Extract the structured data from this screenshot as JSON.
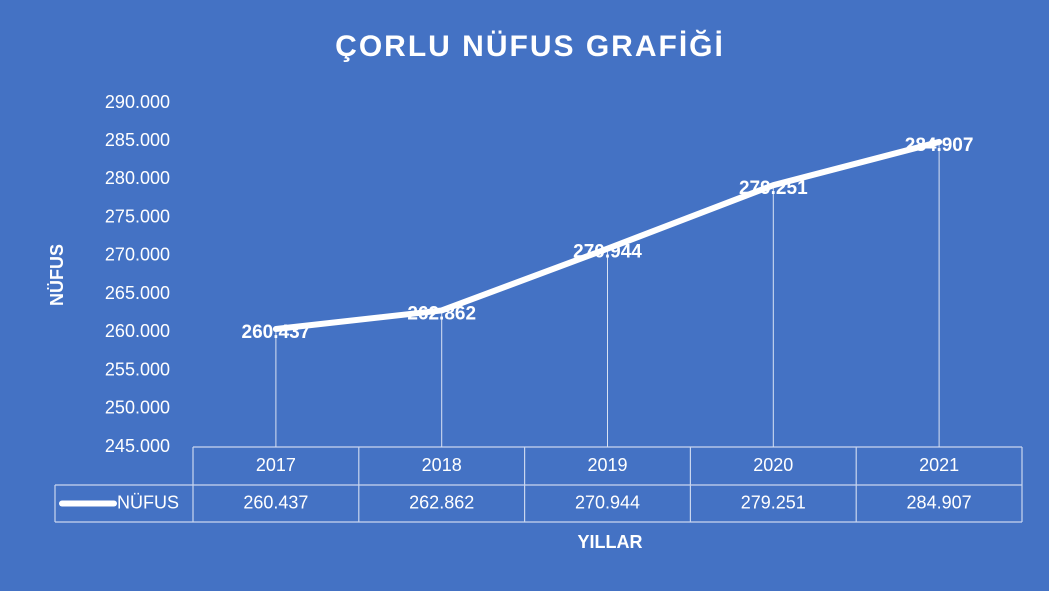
{
  "chart_data": {
    "type": "line",
    "title": "ÇORLU NÜFUS GRAFİĞİ",
    "x_label": "YILLAR",
    "y_label": "NÜFUS",
    "categories": [
      "2017",
      "2018",
      "2019",
      "2020",
      "2021"
    ],
    "series": [
      {
        "name": "NÜFUS",
        "color": "#ffffff",
        "values": [
          260437,
          262862,
          270944,
          279251,
          284907
        ],
        "value_labels": [
          "260.437",
          "262.862",
          "270.944",
          "279.251",
          "284.907"
        ]
      }
    ],
    "ylim": [
      245000,
      290000
    ],
    "yticks": [
      {
        "value": 245000,
        "label": "245.000"
      },
      {
        "value": 250000,
        "label": "250.000"
      },
      {
        "value": 255000,
        "label": "255.000"
      },
      {
        "value": 260000,
        "label": "260.000"
      },
      {
        "value": 265000,
        "label": "265.000"
      },
      {
        "value": 270000,
        "label": "270.000"
      },
      {
        "value": 275000,
        "label": "275.000"
      },
      {
        "value": 280000,
        "label": "280.000"
      },
      {
        "value": 285000,
        "label": "285.000"
      },
      {
        "value": 290000,
        "label": "290.000"
      }
    ],
    "data_table": true,
    "drop_lines": true
  }
}
